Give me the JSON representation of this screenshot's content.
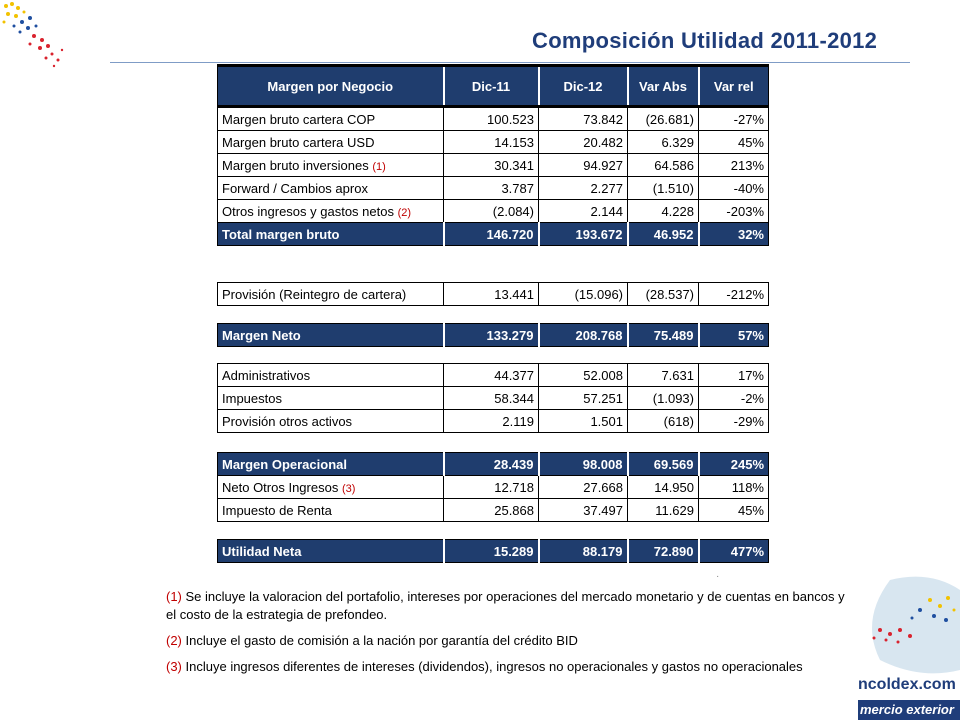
{
  "title": "Composición Utilidad 2011-2012",
  "header": [
    "Margen por Negocio",
    "Dic-11",
    "Dic-12",
    "Var Abs",
    "Var rel"
  ],
  "blocks": [
    {
      "rows": [
        {
          "label": "Margen bruto cartera COP",
          "note": "",
          "v": [
            "100.523",
            "73.842",
            "(26.681)",
            "-27%"
          ]
        },
        {
          "label": "Margen bruto cartera USD",
          "note": "",
          "v": [
            "14.153",
            "20.482",
            "6.329",
            "45%"
          ]
        },
        {
          "label": "Margen bruto inversiones",
          "note": "(1)",
          "v": [
            "30.341",
            "94.927",
            "64.586",
            "213%"
          ]
        },
        {
          "label": "Forward / Cambios aprox",
          "note": "",
          "v": [
            "3.787",
            "2.277",
            "(1.510)",
            "-40%"
          ]
        },
        {
          "label": "Otros ingresos y gastos netos",
          "note": "(2)",
          "v": [
            "(2.084)",
            "2.144",
            "4.228",
            "-203%"
          ]
        }
      ],
      "total": {
        "label": "Total margen bruto",
        "v": [
          "146.720",
          "193.672",
          "46.952",
          "32%"
        ]
      }
    },
    {
      "rows": [
        {
          "label": "Provisión (Reintegro de cartera)",
          "note": "",
          "v": [
            "13.441",
            "(15.096)",
            "(28.537)",
            "-212%"
          ]
        }
      ]
    },
    {
      "total": {
        "label": "Margen Neto",
        "v": [
          "133.279",
          "208.768",
          "75.489",
          "57%"
        ]
      }
    },
    {
      "rows": [
        {
          "label": "Administrativos",
          "note": "",
          "v": [
            "44.377",
            "52.008",
            "7.631",
            "17%"
          ]
        },
        {
          "label": "Impuestos",
          "note": "",
          "v": [
            "58.344",
            "57.251",
            "(1.093)",
            "-2%"
          ]
        },
        {
          "label": "Provisión otros activos",
          "note": "",
          "v": [
            "2.119",
            "1.501",
            "(618)",
            "-29%"
          ]
        }
      ]
    },
    {
      "total_first": {
        "label": "Margen Operacional",
        "v": [
          "28.439",
          "98.008",
          "69.569",
          "245%"
        ]
      },
      "rows": [
        {
          "label": "Neto Otros Ingresos",
          "note": "(3)",
          "v": [
            "12.718",
            "27.668",
            "14.950",
            "118%"
          ]
        },
        {
          "label": "Impuesto de Renta",
          "note": "",
          "v": [
            "25.868",
            "37.497",
            "11.629",
            "45%"
          ]
        }
      ]
    },
    {
      "total": {
        "label": "Utilidad Neta",
        "v": [
          "15.289",
          "88.179",
          "72.890",
          "477%"
        ]
      }
    }
  ],
  "notes": [
    {
      "num": "(1)",
      "text": "Se incluye la valoracion del portafolio, intereses por operaciones del mercado monetario y de cuentas en bancos y el costo de la estrategia de prefondeo."
    },
    {
      "num": "(2)",
      "text": "Incluye el gasto de comisión a la nación por garantía del crédito BID"
    },
    {
      "num": "(3)",
      "text": "Incluye ingresos diferentes de intereses (dividendos), ingresos no operacionales y gastos no operacionales"
    }
  ],
  "brand": {
    "site": "ncoldex.com",
    "tagline": "mercio exterior"
  },
  "colors": {
    "header_blue": "#1f3d6e",
    "title_blue": "#1f3d7a",
    "note_red": "#c00000"
  }
}
